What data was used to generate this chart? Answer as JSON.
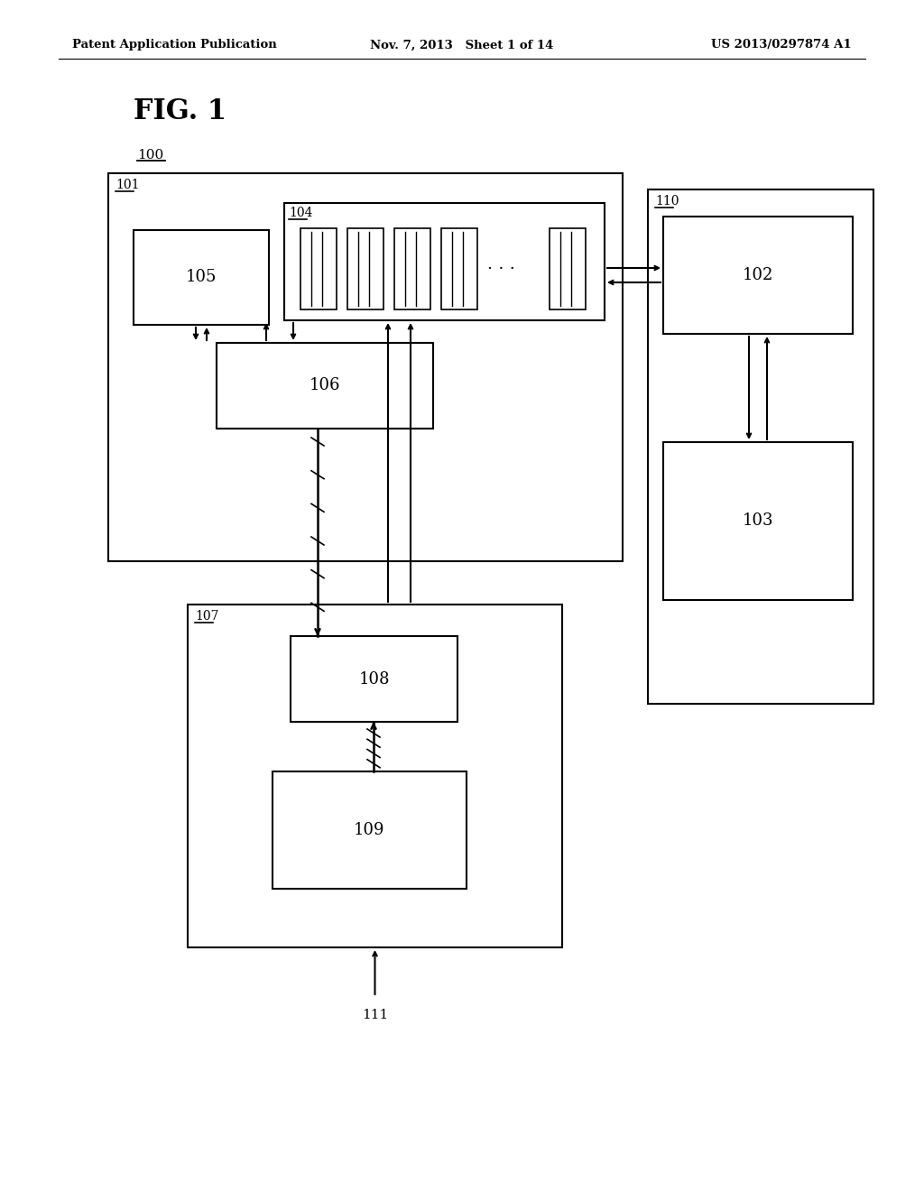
{
  "bg_color": "#ffffff",
  "header_left": "Patent Application Publication",
  "header_center": "Nov. 7, 2013   Sheet 1 of 14",
  "header_right": "US 2013/0297874 A1",
  "fig_label": "FIG. 1",
  "label_100": "100",
  "label_101": "101",
  "label_102": "102",
  "label_103": "103",
  "label_104": "104",
  "label_105": "105",
  "label_106": "106",
  "label_107": "107",
  "label_108": "108",
  "label_109": "109",
  "label_110": "110",
  "label_111": "111"
}
